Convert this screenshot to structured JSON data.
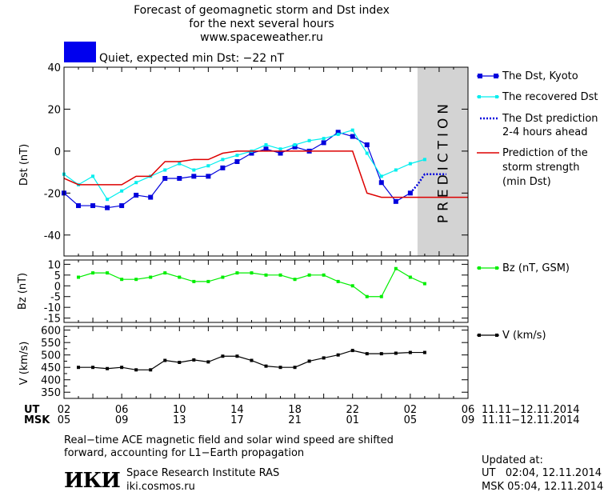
{
  "header": {
    "title_line1": "Forecast of geomagnetic storm and Dst index",
    "title_line2": "for the next several hours",
    "title_line3": "www.spaceweather.ru",
    "status_text": "Quiet, expected min Dst: −22 nT",
    "status_color": "#0000ee"
  },
  "chart_data": [
    {
      "type": "line",
      "ylabel": "Dst (nT)",
      "ylim": [
        -50,
        40
      ],
      "yticks": [
        -40,
        -20,
        0,
        20,
        40
      ],
      "xlim": [
        0,
        28
      ],
      "prediction_band": {
        "from": 24.5,
        "to": 28,
        "label": "PREDICTION",
        "color": "#d3d3d3"
      },
      "series": [
        {
          "name": "The Dst, Kyoto",
          "color": "#0000dd",
          "x": [
            0,
            1,
            2,
            3,
            4,
            5,
            6,
            7,
            8,
            9,
            10,
            11,
            12,
            13,
            14,
            15,
            16,
            17,
            18,
            19,
            20,
            21,
            22,
            23,
            24
          ],
          "y": [
            -20,
            -26,
            -26,
            -27,
            -26,
            -21,
            -22,
            -13,
            -13,
            -12,
            -12,
            -8,
            -5,
            -1,
            1,
            -1,
            2,
            0,
            4,
            9,
            7,
            3,
            -15,
            -24,
            -20
          ]
        },
        {
          "name": "The recovered Dst",
          "color": "#00eeee",
          "x": [
            0,
            1,
            2,
            3,
            4,
            5,
            6,
            7,
            8,
            9,
            10,
            11,
            12,
            13,
            14,
            15,
            16,
            17,
            18,
            19,
            20,
            21,
            22,
            23,
            24,
            25
          ],
          "y": [
            -11,
            -16,
            -12,
            -23,
            -19,
            -15,
            -12,
            -9,
            -6,
            -9,
            -7,
            -4,
            -2,
            0,
            3,
            1,
            3,
            5,
            6,
            8,
            10,
            -1,
            -12,
            -9,
            -6,
            -4
          ]
        },
        {
          "name": "The Dst prediction",
          "name_line2": "2-4 hours ahead",
          "color": "#0000dd",
          "x": [
            24,
            24.5,
            25,
            26.5
          ],
          "y": [
            -20,
            -16,
            -11,
            -11
          ]
        },
        {
          "name": "Prediction of the",
          "name_line2": "storm strength",
          "name_line3": "(min Dst)",
          "color": "#dd0000",
          "x": [
            0,
            1,
            2,
            3,
            4,
            5,
            6,
            7,
            8,
            9,
            10,
            11,
            12,
            13,
            14,
            15,
            16,
            17,
            18,
            19,
            20,
            20.5,
            21,
            22,
            23,
            24,
            25,
            26,
            28
          ],
          "y": [
            -13,
            -16,
            -16,
            -16,
            -16,
            -12,
            -12,
            -5,
            -5,
            -4,
            -4,
            -1,
            0,
            0,
            0,
            0,
            0,
            0,
            0,
            0,
            0,
            -10,
            -20,
            -22,
            -22,
            -22,
            -22,
            -22,
            -22
          ]
        }
      ]
    },
    {
      "type": "line",
      "ylabel": "Bz (nT)",
      "ylim": [
        -17,
        12
      ],
      "yticks": [
        10,
        5,
        0,
        -5,
        -10,
        -15
      ],
      "ytick_labels": [
        "10",
        "5",
        "0",
        "-5",
        "-10",
        "-15"
      ],
      "xlim": [
        0,
        28
      ],
      "series": [
        {
          "name": "Bz (nT, GSM)",
          "color": "#00ee00",
          "x": [
            1,
            2,
            3,
            4,
            5,
            6,
            7,
            8,
            9,
            10,
            11,
            12,
            13,
            14,
            15,
            16,
            17,
            18,
            19,
            20,
            21,
            22,
            23,
            24,
            25
          ],
          "y": [
            4,
            6,
            6,
            3,
            3,
            4,
            6,
            4,
            2,
            2,
            4,
            6,
            6,
            5,
            5,
            3,
            5,
            5,
            2,
            0,
            -5,
            -5,
            8,
            4,
            1
          ]
        }
      ]
    },
    {
      "type": "line",
      "ylabel": "V (km/s)",
      "ylim": [
        325,
        615
      ],
      "yticks": [
        600,
        550,
        500,
        450,
        400,
        350
      ],
      "ytick_labels": [
        "600",
        "550",
        "500",
        "450",
        "400",
        "350"
      ],
      "yminor": [
        575,
        525,
        475,
        425,
        375
      ],
      "xlim": [
        0,
        28
      ],
      "series": [
        {
          "name": "V (km/s)",
          "color": "#000000",
          "x": [
            1,
            2,
            3,
            4,
            5,
            6,
            7,
            8,
            9,
            10,
            11,
            12,
            13,
            14,
            15,
            16,
            17,
            18,
            19,
            20,
            21,
            22,
            23,
            24,
            25
          ],
          "y": [
            450,
            450,
            445,
            450,
            440,
            440,
            478,
            470,
            480,
            472,
            495,
            495,
            478,
            455,
            450,
            450,
            475,
            488,
            500,
            518,
            505,
            505,
            507,
            510,
            510
          ]
        }
      ]
    }
  ],
  "xaxis": {
    "ut_label": "UT",
    "msk_label": "MSK",
    "positions": [
      0,
      2,
      4,
      6,
      8,
      10,
      12,
      14,
      16,
      18,
      20,
      22,
      24,
      26,
      28
    ],
    "ut_ticks": [
      "02",
      "",
      "06",
      "",
      "10",
      "",
      "14",
      "",
      "18",
      "",
      "22",
      "",
      "02",
      "",
      "06"
    ],
    "msk_ticks": [
      "05",
      "",
      "09",
      "",
      "13",
      "",
      "17",
      "",
      "21",
      "",
      "01",
      "",
      "05",
      "",
      "09"
    ],
    "ut_range": "11.11−12.11.2014",
    "msk_range": "11.11−12.11.2014"
  },
  "footer": {
    "note_line1": "Real−time ACE magnetic field and solar wind speed are shifted",
    "note_line2": "forward, accounting for L1−Earth propagation",
    "logo_text": "ИКИ",
    "institute": "Space Research Institute RAS",
    "site": "iki.cosmos.ru",
    "updated_label": "Updated at:",
    "updated_ut": "UT   02:04, 12.11.2014",
    "updated_msk": "MSK 05:04, 12.11.2014"
  }
}
